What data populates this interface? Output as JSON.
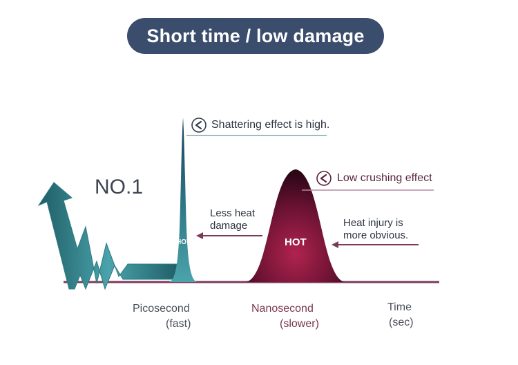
{
  "title": "Short time / low damage",
  "badge": "NO.1",
  "annotations": {
    "shattering": "Shattering effect is high.",
    "low_crushing": "Low crushing effect",
    "less_heat_line1": "Less heat",
    "less_heat_line2": "damage",
    "heat_injury_line1": "Heat injury is",
    "heat_injury_line2": "more obvious."
  },
  "peaks": {
    "pico_label": "HOT",
    "nano_label": "HOT"
  },
  "axis": {
    "pico_line1": "Picosecond",
    "pico_line2": "(fast)",
    "nano_line1": "Nanosecond",
    "nano_line2": "(slower)",
    "time_line1": "Time",
    "time_line2": "(sec)"
  },
  "colors": {
    "title_bg": "#3a4d6d",
    "teal": "#3a8f98",
    "maroon": "#7a1a3a",
    "axis_line": "#7b3a5c"
  },
  "icons": {
    "annotation_marker": "chevron-left-circle-icon",
    "growth_arrow": "zigzag-arrow-icon"
  }
}
